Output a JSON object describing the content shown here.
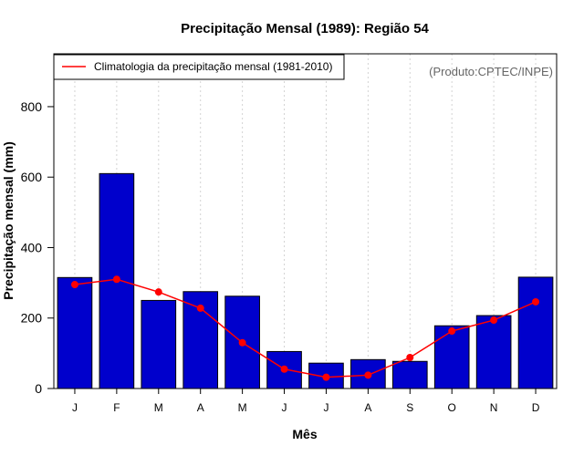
{
  "chart_data": {
    "type": "bar",
    "title": "Precipitação Mensal (1989): Região 54",
    "xlabel": "Mês",
    "ylabel": "Precipitação mensal (mm)",
    "categories": [
      "J",
      "F",
      "M",
      "A",
      "M",
      "J",
      "J",
      "A",
      "S",
      "O",
      "N",
      "D"
    ],
    "ylim": [
      0,
      950
    ],
    "yticks": [
      0,
      200,
      400,
      600,
      800
    ],
    "grid": "vertical dotted",
    "series": [
      {
        "name": "Precipitação mensal (1989)",
        "type": "bar",
        "color": "#0000cc",
        "values": [
          315,
          610,
          250,
          275,
          262,
          105,
          72,
          82,
          77,
          178,
          207,
          316
        ]
      },
      {
        "name": "Climatologia da precipitação mensal (1981-2010)",
        "type": "line",
        "color": "#ff0000",
        "values": [
          295,
          310,
          274,
          228,
          130,
          55,
          32,
          38,
          88,
          163,
          194,
          246
        ]
      }
    ],
    "legend": {
      "position": "top-left",
      "label": "Climatologia da precipitação mensal (1981-2010)"
    },
    "annotation": "(Produto:CPTEC/INPE)"
  }
}
